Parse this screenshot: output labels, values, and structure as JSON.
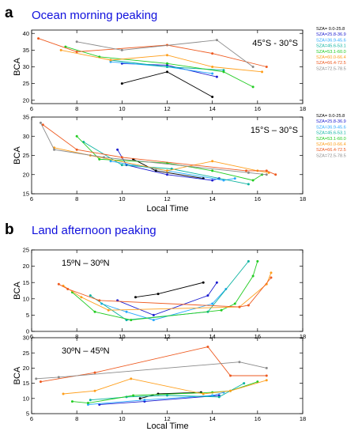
{
  "figure": {
    "panel_a": {
      "letter": "a",
      "title": "Ocean morning peaking",
      "xlabel": "Local Time"
    },
    "panel_b": {
      "letter": "b",
      "title": "Land afternoon peaking",
      "xlabel": "Local Time"
    },
    "title_color": "#1010dd"
  },
  "sza_legend": [
    {
      "label": "SZA= 0.0-25.8",
      "color": "#000000"
    },
    {
      "label": "SZA=25.8-36.9",
      "color": "#1c1cd0"
    },
    {
      "label": "SZA=36.9-45.6",
      "color": "#29a8ff"
    },
    {
      "label": "SZA=45.6-53.1",
      "color": "#0ab3a0"
    },
    {
      "label": "SZA=53.1-60.0",
      "color": "#22cc22"
    },
    {
      "label": "SZA=60.0-66.4",
      "color": "#ff9f1c"
    },
    {
      "label": "SZA=66.4-72.5",
      "color": "#ee5a20"
    },
    {
      "label": "SZA=72.5-78.5",
      "color": "#8a8a8a"
    }
  ],
  "chart_data": [
    {
      "id": "a1",
      "type": "line",
      "region": "45°S - 30°S",
      "ylabel": "BCA",
      "xlim": [
        6,
        18
      ],
      "ylim": [
        19,
        41
      ],
      "xticks": [
        6,
        8,
        10,
        12,
        14,
        16,
        18
      ],
      "yticks": [
        20,
        25,
        30,
        35,
        40
      ],
      "series": [
        {
          "color_index": 0,
          "x": [
            10,
            12,
            14
          ],
          "y": [
            25,
            28.5,
            21
          ]
        },
        {
          "color_index": 1,
          "x": [
            10,
            12,
            14.2
          ],
          "y": [
            31,
            30.5,
            27
          ]
        },
        {
          "color_index": 2,
          "x": [
            9.5,
            12,
            14
          ],
          "y": [
            31.5,
            30,
            28
          ]
        },
        {
          "color_index": 3,
          "x": [
            9.5,
            12,
            14.5
          ],
          "y": [
            32,
            30,
            29
          ]
        },
        {
          "color_index": 4,
          "x": [
            7.5,
            9,
            12,
            14.5,
            15.8
          ],
          "y": [
            36,
            33,
            31,
            28.5,
            24
          ]
        },
        {
          "color_index": 5,
          "x": [
            7.3,
            9.5,
            12,
            14,
            16.2
          ],
          "y": [
            35,
            32,
            33.5,
            30,
            28.5
          ]
        },
        {
          "color_index": 6,
          "x": [
            6.3,
            8,
            12,
            14,
            16.4
          ],
          "y": [
            38.5,
            34.5,
            36.5,
            34,
            30
          ]
        },
        {
          "color_index": 7,
          "x": [
            8,
            10,
            14.2,
            15.8
          ],
          "y": [
            37.5,
            35,
            38,
            30
          ]
        }
      ]
    },
    {
      "id": "a2",
      "type": "line",
      "region": "15°S – 30°S",
      "ylabel": "BCA",
      "xlim": [
        6,
        18
      ],
      "ylim": [
        15,
        35
      ],
      "xticks": [
        6,
        8,
        10,
        12,
        14,
        16,
        18
      ],
      "yticks": [
        15,
        20,
        25,
        30,
        35
      ],
      "series": [
        {
          "color_index": 0,
          "x": [
            10.5,
            11.5,
            13.6
          ],
          "y": [
            24,
            21,
            19
          ]
        },
        {
          "color_index": 1,
          "x": [
            9.8,
            10.2,
            12,
            14,
            14.3
          ],
          "y": [
            26.5,
            22.5,
            20,
            18.5,
            19
          ]
        },
        {
          "color_index": 2,
          "x": [
            9.5,
            12,
            14.5,
            15
          ],
          "y": [
            23.5,
            21,
            18.5,
            19
          ]
        },
        {
          "color_index": 3,
          "x": [
            8.3,
            10,
            12.2,
            15.6
          ],
          "y": [
            28.5,
            22.5,
            21.5,
            17.5
          ]
        },
        {
          "color_index": 4,
          "x": [
            8,
            9,
            12,
            14,
            15.8,
            16.2
          ],
          "y": [
            30,
            24,
            23,
            21,
            18.5,
            20
          ]
        },
        {
          "color_index": 5,
          "x": [
            7,
            8.6,
            12,
            14,
            16,
            16.5
          ],
          "y": [
            27,
            25,
            21,
            23.5,
            21,
            20.5
          ]
        },
        {
          "color_index": 6,
          "x": [
            6.5,
            8,
            10,
            15.5,
            16.4,
            16.8
          ],
          "y": [
            33,
            26.5,
            24.5,
            21,
            21,
            20
          ]
        },
        {
          "color_index": 7,
          "x": [
            6.4,
            7,
            9.2,
            15.6,
            16.4
          ],
          "y": [
            33.5,
            26.5,
            24.5,
            20.5,
            20
          ]
        }
      ]
    },
    {
      "id": "b1",
      "type": "line",
      "region": "15ºN – 30ºN",
      "ylabel": "BCA",
      "xlim": [
        6,
        18
      ],
      "ylim": [
        0,
        25
      ],
      "xticks": [
        6,
        8,
        10,
        12,
        14,
        16,
        18
      ],
      "yticks": [
        0,
        5,
        10,
        15,
        20,
        25
      ],
      "series": [
        {
          "color_index": 0,
          "x": [
            10.6,
            11.6,
            13.6
          ],
          "y": [
            10.5,
            11.5,
            15
          ]
        },
        {
          "color_index": 1,
          "x": [
            9.8,
            11.4,
            13.8,
            14.2
          ],
          "y": [
            9.5,
            5,
            11,
            15
          ]
        },
        {
          "color_index": 2,
          "x": [
            9.1,
            10.2,
            11.4,
            14,
            14.6
          ],
          "y": [
            8.5,
            6,
            3.5,
            8.5,
            13
          ]
        },
        {
          "color_index": 3,
          "x": [
            8.6,
            10.2,
            13.8,
            15.6
          ],
          "y": [
            11,
            3.5,
            6,
            21.5
          ]
        },
        {
          "color_index": 4,
          "x": [
            7.8,
            8.8,
            10.4,
            14.4,
            15,
            15.8,
            16
          ],
          "y": [
            12,
            6,
            3.5,
            6.5,
            8.5,
            17,
            21.5
          ]
        },
        {
          "color_index": 5,
          "x": [
            7.4,
            8.2,
            9.4,
            15.2,
            16.4,
            16.6
          ],
          "y": [
            14,
            10.5,
            6.5,
            7.5,
            14.5,
            18
          ]
        },
        {
          "color_index": 6,
          "x": [
            7.2,
            7.6,
            9,
            15.2,
            15.6,
            16.6
          ],
          "y": [
            14.5,
            13,
            9.5,
            7.5,
            8,
            16.5
          ]
        }
      ]
    },
    {
      "id": "b2",
      "type": "line",
      "region": "30ºN – 45ºN",
      "ylabel": "BCA",
      "xlim": [
        6,
        18
      ],
      "ylim": [
        5,
        30
      ],
      "xticks": [
        6,
        8,
        10,
        12,
        14,
        16,
        18
      ],
      "yticks": [
        5,
        10,
        15,
        20,
        25,
        30
      ],
      "series": [
        {
          "color_index": 0,
          "x": [
            10.8,
            11.6,
            13.5
          ],
          "y": [
            10,
            11.5,
            12
          ]
        },
        {
          "color_index": 1,
          "x": [
            9,
            11,
            14.3
          ],
          "y": [
            8,
            9,
            11
          ]
        },
        {
          "color_index": 2,
          "x": [
            8.5,
            11,
            14,
            14.5
          ],
          "y": [
            8,
            9.5,
            11,
            12
          ]
        },
        {
          "color_index": 3,
          "x": [
            8.6,
            10.2,
            12,
            14.3,
            15.4
          ],
          "y": [
            9.5,
            10.5,
            11,
            10.5,
            15
          ]
        },
        {
          "color_index": 4,
          "x": [
            7.8,
            8.5,
            10.5,
            14,
            14.8,
            16
          ],
          "y": [
            9,
            8.5,
            11,
            12,
            12.5,
            15.5
          ]
        },
        {
          "color_index": 5,
          "x": [
            7.4,
            8.8,
            10.4,
            13.6,
            14.8,
            16.4
          ],
          "y": [
            11.5,
            12.5,
            16.5,
            11.5,
            12.5,
            16
          ]
        },
        {
          "color_index": 6,
          "x": [
            6.4,
            8.8,
            13.8,
            14.8,
            16.4
          ],
          "y": [
            15.5,
            18.5,
            27,
            17.5,
            17.5
          ]
        },
        {
          "color_index": 7,
          "x": [
            6.2,
            7.2,
            15.2,
            16.4
          ],
          "y": [
            16.5,
            17,
            22,
            20
          ]
        }
      ]
    }
  ]
}
